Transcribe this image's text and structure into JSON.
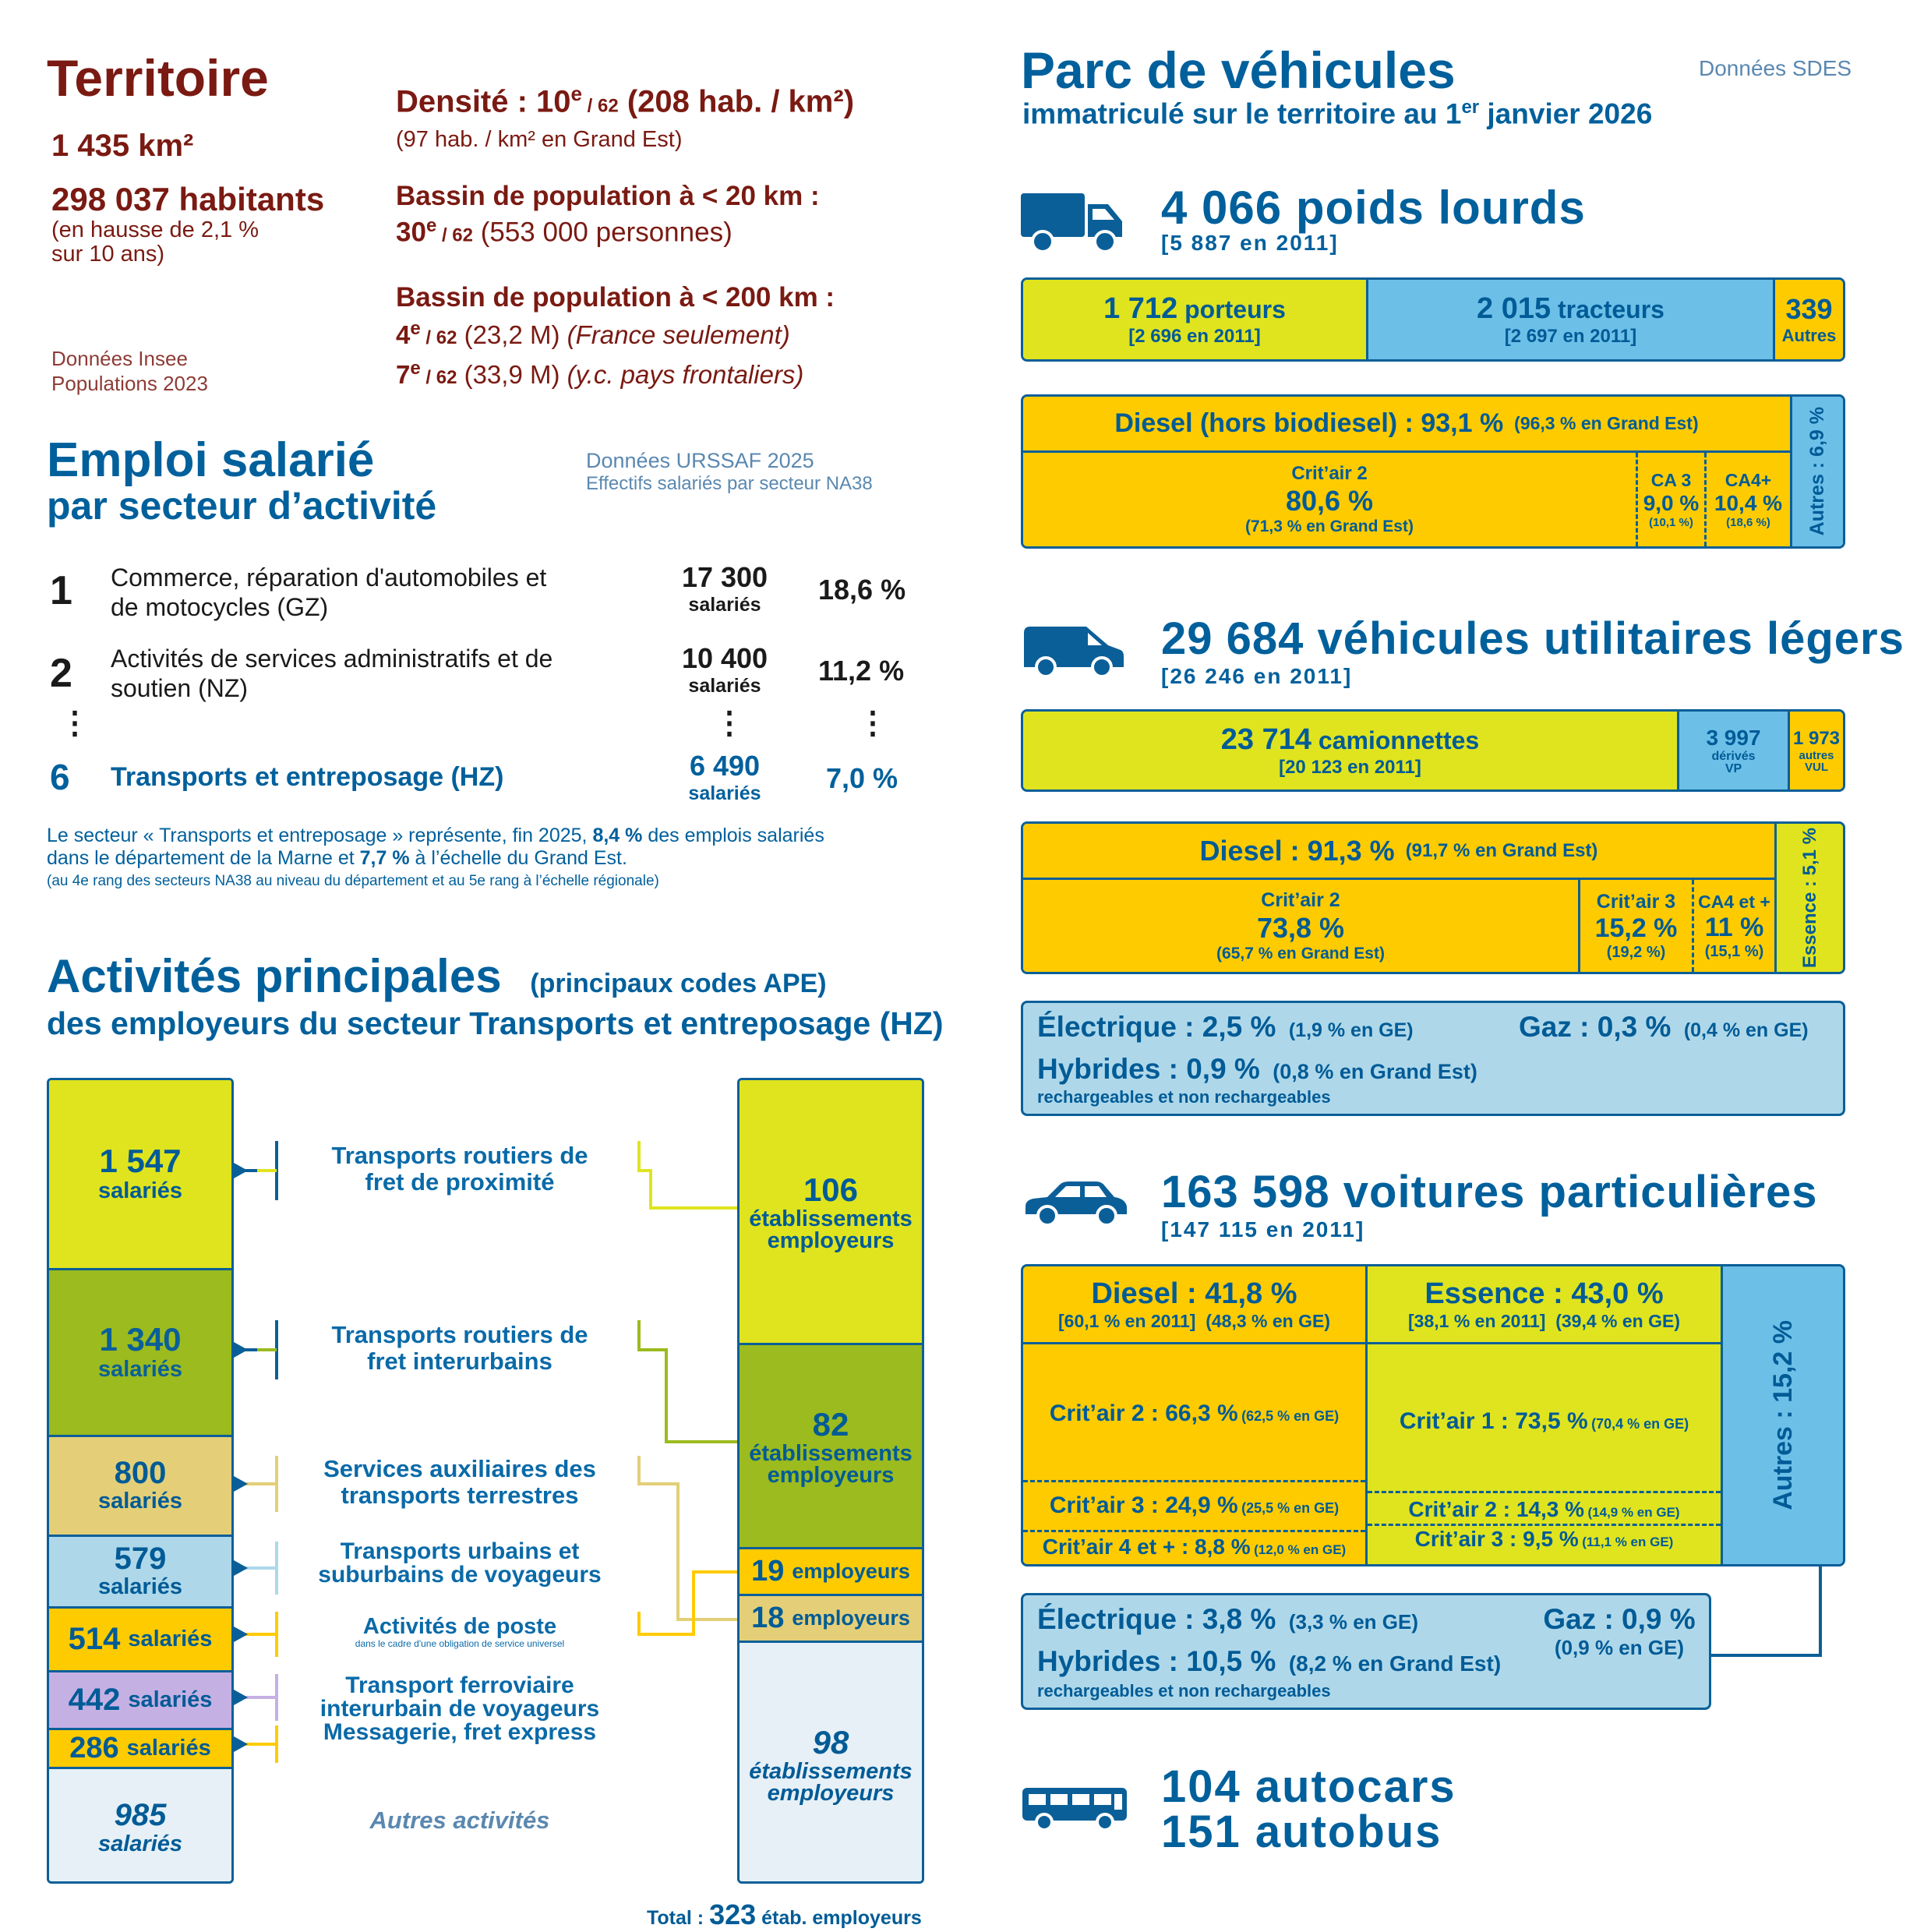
{
  "territoire": {
    "title": "Territoire",
    "area": "1 435 km²",
    "population": "298 037 habitants",
    "pop_note_1": "(en hausse de 2,1 %",
    "pop_note_2": "sur 10 ans)",
    "source_1": "Données Insee",
    "source_2": "Populations 2023",
    "density_label": "Densité : 10",
    "rank_sup": "e",
    "of62": " / 62",
    "density_value": " (208 hab. / km²)",
    "density_note": "(97 hab. / km² en Grand Est)",
    "bassin20_label": "Bassin de population à < 20 km :",
    "bassin20_rank": "30",
    "bassin20_value": " (553 000 personnes)",
    "bassin200_label": "Bassin de population à < 200 km :",
    "bassin200_rank1": "4",
    "bassin200_value1": " (23,2 M) ",
    "bassin200_note1": "(France seulement)",
    "bassin200_rank2": "7",
    "bassin200_value2": " (33,9 M) ",
    "bassin200_note2": "(y.c. pays frontaliers)"
  },
  "emploi": {
    "title_1": "Emploi salarié",
    "title_2": "par secteur d’activité",
    "source_1": "Données URSSAF 2025",
    "source_2": "Effectifs salariés par secteur NA38",
    "rows": [
      {
        "rank": "1",
        "label_1": "Commerce, réparation d'automobiles et",
        "label_2": "de motocycles (GZ)",
        "count": "17 300",
        "unit": "salariés",
        "pct": "18,6 %"
      },
      {
        "rank": "2",
        "label_1": "Activités de services administratifs et de",
        "label_2": "soutien (NZ)",
        "count": "10 400",
        "unit": "salariés",
        "pct": "11,2 %"
      },
      {
        "rank": "6",
        "label_1": "Transports et entreposage (HZ)",
        "label_2": "",
        "count": "6 490",
        "unit": "salariés",
        "pct": "7,0 %"
      }
    ],
    "ellipsis": "⋮",
    "note_1a": "Le secteur « Transports et entreposage » représente, fin 2025, ",
    "note_1b": "8,4 %",
    "note_1c": " des emplois salariés",
    "note_2a": "dans le département de la Marne et ",
    "note_2b": "7,7 %",
    "note_2c": " à l’échelle du Grand Est.",
    "note_3": "(au 4e rang des secteurs NA38 au niveau du département et au 5e rang à l’échelle régionale)"
  },
  "activites": {
    "title_1": "Activités principales",
    "title_paren": "(principaux codes APE)",
    "title_2": "des employeurs du secteur Transports et entreposage (HZ)",
    "salaries": [
      {
        "value": "1 547",
        "unit": "salariés"
      },
      {
        "value": "1 340",
        "unit": "salariés"
      },
      {
        "value": "800",
        "unit": "salariés"
      },
      {
        "value": "579",
        "unit": "salariés"
      },
      {
        "value": "514",
        "unit": "salariés"
      },
      {
        "value": "442",
        "unit": "salariés"
      },
      {
        "value": "286",
        "unit": "salariés"
      },
      {
        "value": "985",
        "unit": "salariés"
      }
    ],
    "labels": [
      {
        "l1": "Transports routiers de",
        "l2": "fret de proximité"
      },
      {
        "l1": "Transports routiers de",
        "l2": "fret interurbains"
      },
      {
        "l1": "Services auxiliaires des",
        "l2": "transports terrestres"
      },
      {
        "l1": "Transports urbains et",
        "l2": "suburbains de voyageurs"
      },
      {
        "l1": "Activités de poste",
        "l2": "dans le cadre d'une obligation de service universel"
      },
      {
        "l1": "Transport ferroviaire",
        "l2": "interurbain de voyageurs"
      },
      {
        "l1": "Messagerie, fret express",
        "l2": ""
      }
    ],
    "autres": "Autres activités",
    "etab": [
      {
        "value": "106",
        "unit_1": "établissements",
        "unit_2": "employeurs"
      },
      {
        "value": "82",
        "unit_1": "établissements",
        "unit_2": "employeurs"
      },
      {
        "value": "19",
        "unit_1": "employeurs",
        "unit_2": ""
      },
      {
        "value": "18",
        "unit_1": "employeurs",
        "unit_2": ""
      },
      {
        "value": "98",
        "unit_1": "établissements",
        "unit_2": "employeurs"
      }
    ],
    "total_label": "Total : ",
    "total_value": "323",
    "total_unit": " étab. employeurs"
  },
  "parc": {
    "title": "Parc de véhicules",
    "subtitle_a": "immatriculé sur le territoire au 1",
    "subtitle_sup": "er",
    "subtitle_b": " janvier 2026",
    "source": "Données SDES",
    "pl": {
      "title": "4 066 poids lourds",
      "ref": "[5 887 en 2011]",
      "porteurs": "1 712",
      "porteurs_lbl": " porteurs",
      "porteurs_ref": "[2 696 en 2011]",
      "tracteurs": "2 015",
      "tracteurs_lbl": " tracteurs",
      "tracteurs_ref": "[2 697 en 2011]",
      "autres": "339",
      "autres_lbl": "Autres",
      "diesel": "Diesel (hors biodiesel) : 93,1 %",
      "diesel_ge": "(96,3 % en Grand Est)",
      "ca2_lbl": "Crit’air 2",
      "ca2": "80,6 %",
      "ca2_ge": "(71,3 % en Grand Est)",
      "ca3_lbl": "CA 3",
      "ca3": "9,0 %",
      "ca3_ge": "(10,1 %)",
      "ca4_lbl": "CA4+",
      "ca4": "10,4 %",
      "ca4_ge": "(18,6 %)",
      "autres_fuel": "Autres : 6,9 %",
      "share_porteurs": 0.421,
      "share_tracteurs": 0.496,
      "share_autres": 0.083
    },
    "vul": {
      "title": "29 684 véhicules utilitaires légers",
      "ref": "[26 246 en 2011]",
      "cam": "23 714",
      "cam_lbl": " camionnettes",
      "cam_ref": "[20 123 en 2011]",
      "vp": "3 997",
      "vp_l1": "dérivés",
      "vp_l2": "VP",
      "aut": "1 973",
      "aut_l1": "autres",
      "aut_l2": "VUL",
      "diesel": "Diesel : 91,3 %",
      "diesel_ge": "(91,7 % en Grand Est)",
      "ca2_lbl": "Crit’air 2",
      "ca2": "73,8 %",
      "ca2_ge": "(65,7 % en Grand Est)",
      "ca3_lbl": "Crit’air 3",
      "ca3": "15,2 %",
      "ca3_ge": "(19,2 %)",
      "ca4_lbl": "CA4 et +",
      "ca4": "11 %",
      "ca4_ge": "(15,1 %)",
      "essence": "Essence : 5,1 %",
      "elec": "Électrique : 2,5 %",
      "elec_ge": "(1,9 % en GE)",
      "gaz": "Gaz : 0,3 %",
      "gaz_ge": "(0,4 % en GE)",
      "hyb": "Hybrides : 0,9 %",
      "hyb_ge": "(0,8 % en Grand Est)",
      "hyb_note": "rechargeables et non rechargeables"
    },
    "vp": {
      "title": "163 598 voitures particulières",
      "ref": "[147 115 en 2011]",
      "diesel": "Diesel : 41,8 %",
      "diesel_ref": "[60,1 % en 2011]  (48,3 % en GE)",
      "essence": "Essence : 43,0 %",
      "essence_ref": "[38,1 % en 2011]  (39,4 % en GE)",
      "d_ca2": "Crit’air 2 : 66,3 %",
      "d_ca2_ge": "(62,5 % en GE)",
      "d_ca3": "Crit’air 3 : 24,9 %",
      "d_ca3_ge": "(25,5 % en GE)",
      "d_ca4": "Crit’air 4 et + : 8,8 %",
      "d_ca4_ge": "(12,0 % en GE)",
      "e_ca1": "Crit’air 1 : 73,5 %",
      "e_ca1_ge": "(70,4 % en GE)",
      "e_ca2": "Crit’air 2 : 14,3 %",
      "e_ca2_ge": "(14,9 % en GE)",
      "e_ca3": "Crit’air 3 : 9,5 %",
      "e_ca3_ge": "(11,1 % en GE)",
      "autres": "Autres : 15,2 %",
      "elec": "Électrique : 3,8 %",
      "elec_ge": "(3,3 % en GE)",
      "gaz": "Gaz : 0,9 %",
      "gaz_ge": "(0,9 % en GE)",
      "hyb": "Hybrides : 10,5 %",
      "hyb_ge": "(8,2 % en Grand Est)",
      "hyb_note": "rechargeables et non rechargeables"
    },
    "bus": {
      "autocars": "104 autocars",
      "autobus": "151 autobus"
    }
  },
  "colors": {
    "blue": "#00609c",
    "red": "#7a1a12",
    "lime": "#dfe41f",
    "sky": "#6cc0e8",
    "gold": "#fecb00"
  },
  "icons": [
    "truck-icon",
    "van-icon",
    "car-icon",
    "bus-icon"
  ]
}
